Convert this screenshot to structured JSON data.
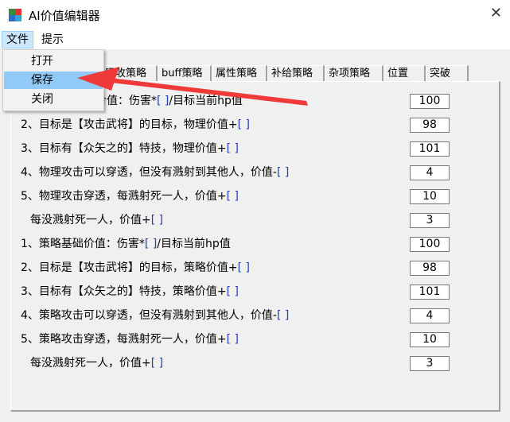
{
  "window": {
    "title": "AI价值编辑器",
    "close": "✕"
  },
  "menubar": {
    "items": [
      {
        "label": "文件"
      },
      {
        "label": "提示"
      }
    ]
  },
  "file_menu": {
    "items": [
      {
        "label": "打开"
      },
      {
        "label": "保存",
        "highlighted": true
      },
      {
        "label": "关闭"
      }
    ]
  },
  "tabs": [
    {
      "label": "吸收策略"
    },
    {
      "label": "buff策略"
    },
    {
      "label": "属性策略"
    },
    {
      "label": "补给策略"
    },
    {
      "label": "杂项策略"
    },
    {
      "label": "位置"
    },
    {
      "label": "突破"
    }
  ],
  "rows": [
    {
      "text": "价值：伤害*",
      "br": "[ ]",
      "tail": "/目标当前hp值",
      "value": "100"
    },
    {
      "text": "2、目标是【攻击武将】的目标，物理价值+",
      "br": "[ ]",
      "tail": "",
      "value": "98"
    },
    {
      "text": "3、目标有【众矢之的】特技，物理价值+",
      "br": "[ ]",
      "tail": "",
      "value": "101"
    },
    {
      "text": "4、物理攻击可以穿透，但没有溅射到其他人，价值-",
      "br": "[ ]",
      "tail": "",
      "value": "4"
    },
    {
      "text": "5、物理攻击穿透，每溅射死一人，价值+",
      "br": "[ ]",
      "tail": "",
      "value": "10"
    },
    {
      "text": "每没溅射死一人，价值+",
      "br": "[ ]",
      "tail": "",
      "value": "3"
    },
    {
      "text": "1、策略基础价值：伤害*",
      "br": "[ ]",
      "tail": "/目标当前hp值",
      "value": "100"
    },
    {
      "text": "2、目标是【攻击武将】的目标，策略价值+",
      "br": "[ ]",
      "tail": "",
      "value": "98"
    },
    {
      "text": "3、目标有【众矢之的】特技，策略价值+",
      "br": "[ ]",
      "tail": "",
      "value": "101"
    },
    {
      "text": "4、策略攻击可以穿透，但没有溅射到其他人，价值-",
      "br": "[ ]",
      "tail": "",
      "value": "4"
    },
    {
      "text": "5、策略攻击穿透，每溅射死一人，价值+",
      "br": "[ ]",
      "tail": "",
      "value": "10"
    },
    {
      "text": "每没溅射死一人，价值+",
      "br": "[ ]",
      "tail": "",
      "value": "3"
    }
  ],
  "annotation": {
    "arrow_color": "#f03a3a"
  }
}
